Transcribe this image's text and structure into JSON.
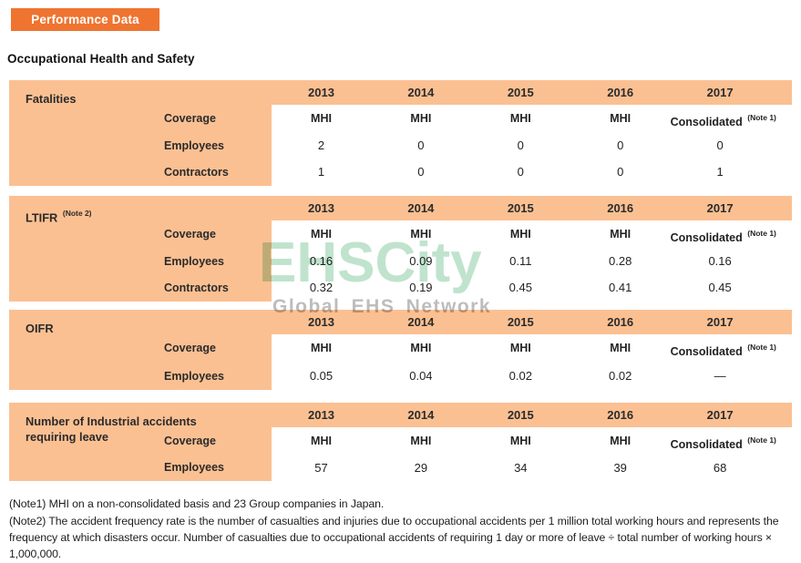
{
  "badge": {
    "label": "Performance Data"
  },
  "section": {
    "title": "Occupational Health and Safety"
  },
  "watermark": {
    "line1": "EHSCity",
    "line2": "Global EHS Network"
  },
  "years": [
    "2013",
    "2014",
    "2015",
    "2016",
    "2017"
  ],
  "colors": {
    "accent_orange": "#ef7430",
    "table_orange": "#fbc092",
    "watermark_green": "#c0e3cd",
    "watermark_gray": "#bdbdbd"
  },
  "tables": [
    {
      "title": "Fatalities",
      "title_sup": "",
      "rows": [
        {
          "label": "Coverage",
          "coverage": true,
          "cells": [
            {
              "text": "MHI"
            },
            {
              "text": "MHI"
            },
            {
              "text": "MHI"
            },
            {
              "text": "MHI"
            },
            {
              "text": "Consolidated",
              "sup": "(Note 1)"
            }
          ]
        },
        {
          "label": "Employees",
          "cells": [
            {
              "text": "2"
            },
            {
              "text": "0"
            },
            {
              "text": "0"
            },
            {
              "text": "0"
            },
            {
              "text": "0"
            }
          ]
        },
        {
          "label": "Contractors",
          "cells": [
            {
              "text": "1"
            },
            {
              "text": "0"
            },
            {
              "text": "0"
            },
            {
              "text": "0"
            },
            {
              "text": "1"
            }
          ]
        }
      ]
    },
    {
      "title": "LTIFR",
      "title_sup": "(Note 2)",
      "rows": [
        {
          "label": "Coverage",
          "coverage": true,
          "cells": [
            {
              "text": "MHI"
            },
            {
              "text": "MHI"
            },
            {
              "text": "MHI"
            },
            {
              "text": "MHI"
            },
            {
              "text": "Consolidated",
              "sup": "(Note 1)"
            }
          ]
        },
        {
          "label": "Employees",
          "cells": [
            {
              "text": "0.16"
            },
            {
              "text": "0.09"
            },
            {
              "text": "0.11"
            },
            {
              "text": "0.28"
            },
            {
              "text": "0.16"
            }
          ]
        },
        {
          "label": "Contractors",
          "cells": [
            {
              "text": "0.32"
            },
            {
              "text": "0.19"
            },
            {
              "text": "0.45"
            },
            {
              "text": "0.41"
            },
            {
              "text": "0.45"
            }
          ]
        }
      ]
    },
    {
      "title": "OIFR",
      "title_sup": "",
      "rows": [
        {
          "label": "Coverage",
          "coverage": true,
          "cells": [
            {
              "text": "MHI"
            },
            {
              "text": "MHI"
            },
            {
              "text": "MHI"
            },
            {
              "text": "MHI"
            },
            {
              "text": "Consolidated",
              "sup": "(Note 1)"
            }
          ]
        },
        {
          "label": "Employees",
          "cells": [
            {
              "text": "0.05"
            },
            {
              "text": "0.04"
            },
            {
              "text": "0.02"
            },
            {
              "text": "0.02"
            },
            {
              "text": "—"
            }
          ]
        }
      ]
    },
    {
      "title": "Number of Industrial accidents requiring leave",
      "title_sup": "",
      "rows": [
        {
          "label": "Coverage",
          "coverage": true,
          "cells": [
            {
              "text": "MHI"
            },
            {
              "text": "MHI"
            },
            {
              "text": "MHI"
            },
            {
              "text": "MHI"
            },
            {
              "text": "Consolidated",
              "sup": "(Note 1)"
            }
          ]
        },
        {
          "label": "Employees",
          "cells": [
            {
              "text": "57"
            },
            {
              "text": "29"
            },
            {
              "text": "34"
            },
            {
              "text": "39"
            },
            {
              "text": "68"
            }
          ]
        }
      ]
    }
  ],
  "notes": [
    "(Note1) MHI on a non-consolidated basis and 23 Group companies in Japan.",
    "(Note2) The accident frequency rate is the number of casualties and injuries due to occupational accidents per 1 million total working hours and represents the frequency at which disasters occur. Number of casualties due to occupational accidents of requiring 1 day or more of leave ÷ total number of working hours × 1,000,000."
  ]
}
